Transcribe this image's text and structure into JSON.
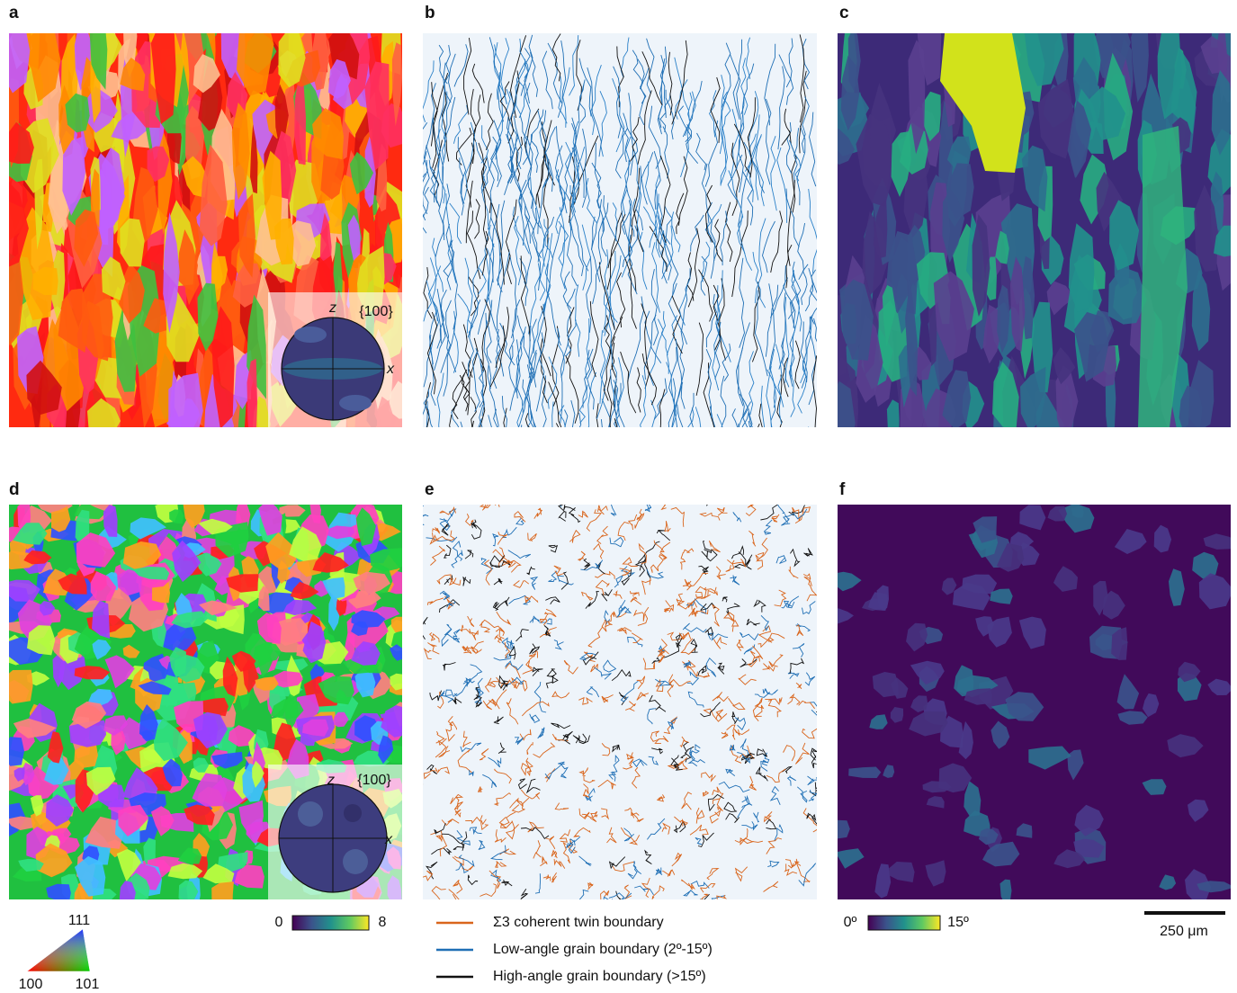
{
  "panels": [
    {
      "label": "a"
    },
    {
      "label": "b"
    },
    {
      "label": "c"
    },
    {
      "label": "d"
    },
    {
      "label": "e"
    },
    {
      "label": "f"
    }
  ],
  "insets": [
    {
      "axis_z": "z",
      "family": "{100}",
      "axis_x": "x"
    },
    {
      "axis_z": "z",
      "family": "{100}",
      "axis_x": "x"
    }
  ],
  "ipf_key": {
    "top": "111",
    "left": "100",
    "right": "101"
  },
  "colorbar_kam": {
    "min": "0",
    "max": "8"
  },
  "legend": [
    "Σ3 coherent twin boundary",
    "Low-angle grain boundary (2º-15º)",
    "High-angle grain boundary (>15º)"
  ],
  "colorbar_misorientation": {
    "min": "0º",
    "max": "15º"
  },
  "scale_bar": "250 μm"
}
